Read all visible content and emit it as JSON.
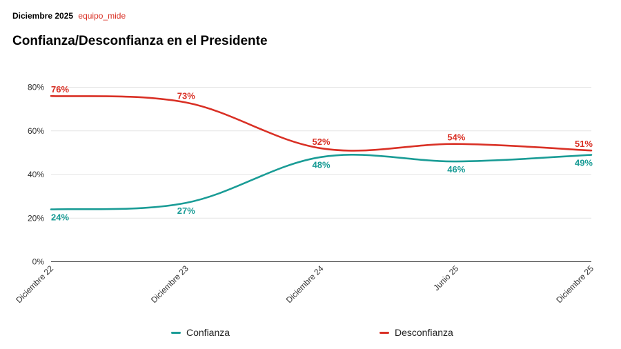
{
  "header": {
    "date": "Diciembre 2025",
    "source": "equipo_mide"
  },
  "chart_data": {
    "type": "line",
    "title": "Confianza/Desconfianza en el Presidente",
    "categories": [
      "Diciembre 22",
      "Diciembre 23",
      "Diciembre 24",
      "Junio 25",
      "Diciembre 25"
    ],
    "series": [
      {
        "name": "Confianza",
        "values": [
          24,
          27,
          48,
          46,
          49
        ],
        "labels": [
          "24%",
          "27%",
          "48%",
          "46%",
          "49%"
        ],
        "color": "#1a9c96"
      },
      {
        "name": "Desconfianza",
        "values": [
          76,
          73,
          52,
          54,
          51
        ],
        "labels": [
          "76%",
          "73%",
          "52%",
          "54%",
          "51%"
        ],
        "color": "#d93025"
      }
    ],
    "yticks": [
      0,
      20,
      40,
      60,
      80
    ],
    "ytick_labels": [
      "0%",
      "20%",
      "40%",
      "60%",
      "80%"
    ],
    "ylim": [
      0,
      80
    ],
    "grid": true,
    "legend": "bottom-center"
  }
}
